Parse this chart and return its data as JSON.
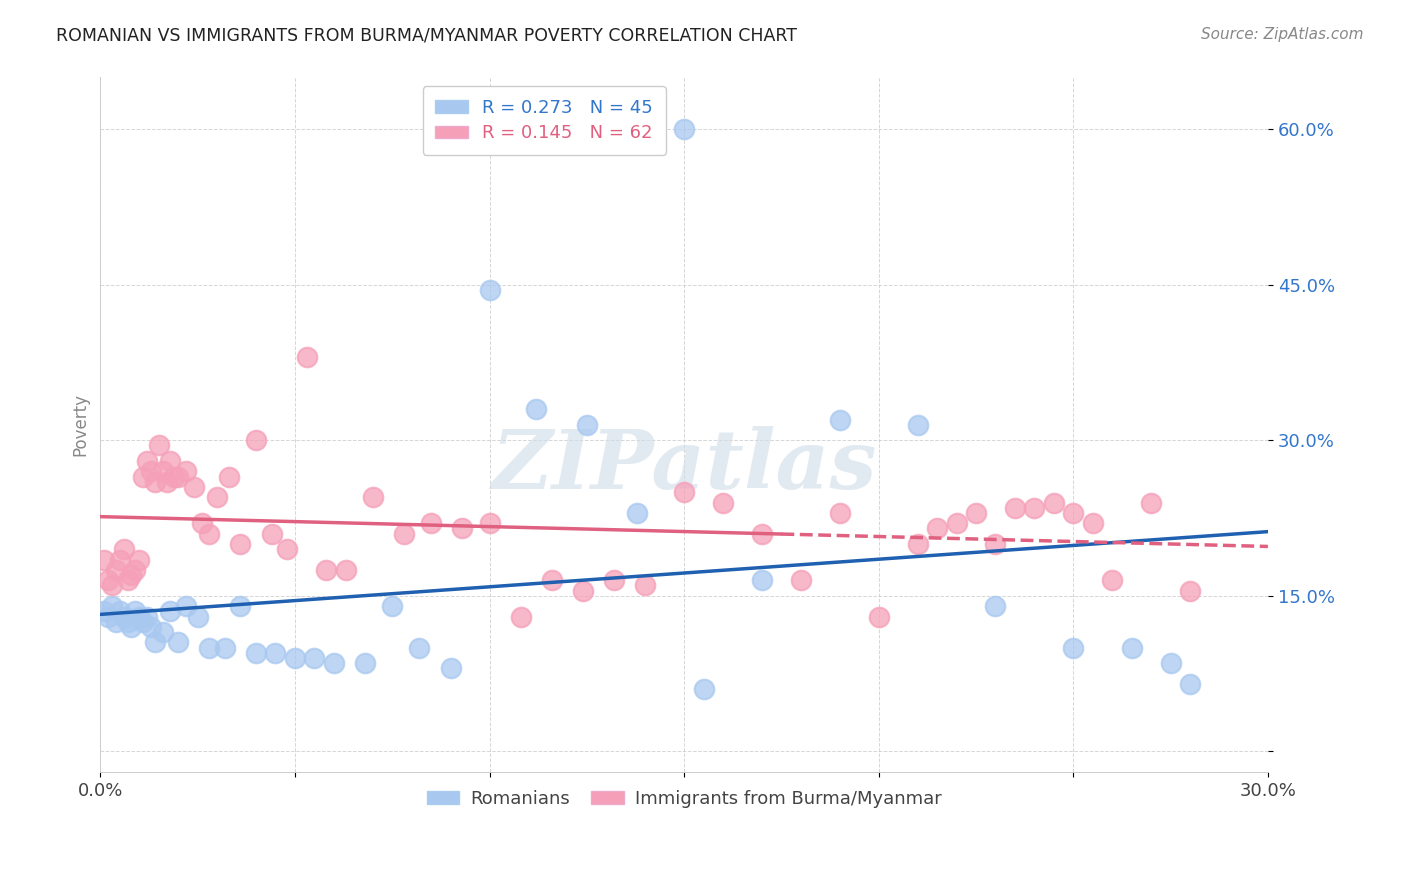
{
  "title": "ROMANIAN VS IMMIGRANTS FROM BURMA/MYANMAR POVERTY CORRELATION CHART",
  "source": "Source: ZipAtlas.com",
  "ylabel": "Poverty",
  "xlim": [
    0.0,
    0.3
  ],
  "ylim": [
    -0.02,
    0.65
  ],
  "yticks": [
    0.0,
    0.15,
    0.3,
    0.45,
    0.6
  ],
  "ytick_labels": [
    "",
    "15.0%",
    "30.0%",
    "45.0%",
    "60.0%"
  ],
  "xtick_positions": [
    0.0,
    0.05,
    0.1,
    0.15,
    0.2,
    0.25,
    0.3
  ],
  "xtick_labels": [
    "0.0%",
    "",
    "",
    "",
    "",
    "",
    "30.0%"
  ],
  "legend_top": [
    "R = 0.273   N = 45",
    "R = 0.145   N = 62"
  ],
  "legend_bottom": [
    "Romanians",
    "Immigrants from Burma/Myanmar"
  ],
  "watermark": "ZIPatlas",
  "romanians_color": "#a8c8f0",
  "burma_color": "#f5a0b8",
  "trendline_romanian_color": "#2060b0",
  "trendline_burma_color": "#e06080",
  "rom_x": [
    0.001,
    0.002,
    0.003,
    0.004,
    0.005,
    0.006,
    0.007,
    0.008,
    0.009,
    0.01,
    0.011,
    0.012,
    0.013,
    0.014,
    0.016,
    0.018,
    0.02,
    0.022,
    0.025,
    0.028,
    0.032,
    0.036,
    0.04,
    0.045,
    0.05,
    0.055,
    0.06,
    0.068,
    0.075,
    0.082,
    0.09,
    0.1,
    0.112,
    0.125,
    0.138,
    0.155,
    0.17,
    0.19,
    0.21,
    0.23,
    0.25,
    0.265,
    0.275,
    0.28,
    0.15
  ],
  "rom_y": [
    0.135,
    0.13,
    0.14,
    0.125,
    0.135,
    0.13,
    0.125,
    0.12,
    0.135,
    0.13,
    0.125,
    0.13,
    0.12,
    0.105,
    0.115,
    0.135,
    0.105,
    0.14,
    0.13,
    0.1,
    0.1,
    0.14,
    0.095,
    0.095,
    0.09,
    0.09,
    0.085,
    0.085,
    0.14,
    0.1,
    0.08,
    0.445,
    0.33,
    0.315,
    0.23,
    0.06,
    0.165,
    0.32,
    0.315,
    0.14,
    0.1,
    0.1,
    0.085,
    0.065,
    0.6
  ],
  "bur_x": [
    0.001,
    0.002,
    0.003,
    0.004,
    0.005,
    0.006,
    0.007,
    0.008,
    0.009,
    0.01,
    0.011,
    0.012,
    0.013,
    0.014,
    0.015,
    0.016,
    0.017,
    0.018,
    0.019,
    0.02,
    0.022,
    0.024,
    0.026,
    0.028,
    0.03,
    0.033,
    0.036,
    0.04,
    0.044,
    0.048,
    0.053,
    0.058,
    0.063,
    0.07,
    0.078,
    0.085,
    0.093,
    0.1,
    0.108,
    0.116,
    0.124,
    0.132,
    0.14,
    0.15,
    0.16,
    0.17,
    0.18,
    0.19,
    0.2,
    0.21,
    0.215,
    0.22,
    0.225,
    0.23,
    0.235,
    0.24,
    0.245,
    0.25,
    0.255,
    0.26,
    0.27,
    0.28
  ],
  "bur_y": [
    0.185,
    0.165,
    0.16,
    0.175,
    0.185,
    0.195,
    0.165,
    0.17,
    0.175,
    0.185,
    0.265,
    0.28,
    0.27,
    0.26,
    0.295,
    0.27,
    0.26,
    0.28,
    0.265,
    0.265,
    0.27,
    0.255,
    0.22,
    0.21,
    0.245,
    0.265,
    0.2,
    0.3,
    0.21,
    0.195,
    0.38,
    0.175,
    0.175,
    0.245,
    0.21,
    0.22,
    0.215,
    0.22,
    0.13,
    0.165,
    0.155,
    0.165,
    0.16,
    0.25,
    0.24,
    0.21,
    0.165,
    0.23,
    0.13,
    0.2,
    0.215,
    0.22,
    0.23,
    0.2,
    0.235,
    0.235,
    0.24,
    0.23,
    0.22,
    0.165,
    0.24,
    0.155
  ]
}
